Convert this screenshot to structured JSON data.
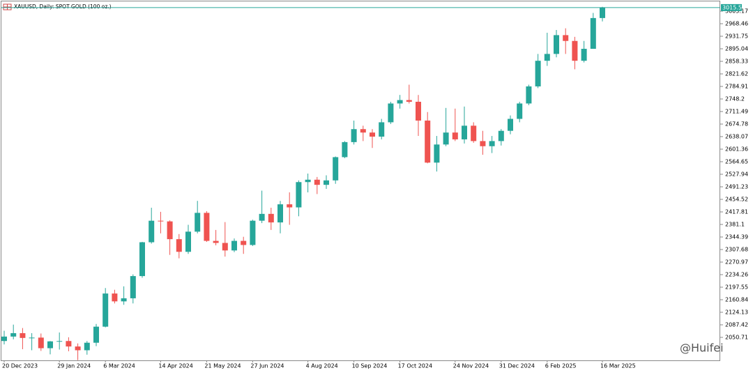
{
  "chart_data": {
    "type": "candlestick",
    "title": "XAUUSD, Daily:  SPOT GOLD (100 oz.)",
    "watermark": "@Huifei",
    "categories": [
      "20 Dec 2023",
      null,
      null,
      null,
      null,
      null,
      "29 Jan 2024",
      null,
      null,
      null,
      null,
      "6 Mar 2024",
      null,
      null,
      null,
      null,
      null,
      "14 Apr 2024",
      null,
      null,
      null,
      null,
      "21 May 2024",
      null,
      null,
      null,
      null,
      "27 Jun 2024",
      null,
      null,
      null,
      null,
      null,
      "4 Aug 2024",
      null,
      null,
      null,
      null,
      "10 Sep 2024",
      null,
      null,
      null,
      null,
      "17 Oct 2024",
      null,
      null,
      null,
      null,
      null,
      "24 Nov 2024",
      null,
      null,
      null,
      null,
      "31 Dec 2024",
      null,
      null,
      null,
      null,
      "6 Feb 2025",
      null,
      null,
      null,
      null,
      null,
      "16 Mar 2025"
    ],
    "open": [
      2040,
      2053,
      2063,
      2049,
      2050,
      2019,
      2039,
      2040,
      2024,
      2013,
      2035,
      2082,
      2179,
      2156,
      2165,
      2230,
      2329,
      2392,
      2390,
      2338,
      2301,
      2360,
      2415,
      2333,
      2327,
      2305,
      2333,
      2321,
      2392,
      2412,
      2387,
      2440,
      2431,
      2505,
      2512,
      2497,
      2510,
      2578,
      2622,
      2660,
      2650,
      2638,
      2680,
      2735,
      2745,
      2740,
      2685,
      2562,
      2615,
      2650,
      2630,
      2670,
      2625,
      2610,
      2625,
      2655,
      2690,
      2735,
      2785,
      2860,
      2880,
      2935,
      2918,
      2860,
      2895,
      2985
    ],
    "high": [
      2070,
      2088,
      2078,
      2063,
      2062,
      2040,
      2065,
      2051,
      2033,
      2040,
      2090,
      2195,
      2190,
      2200,
      2235,
      2330,
      2430,
      2418,
      2393,
      2353,
      2380,
      2450,
      2420,
      2365,
      2388,
      2340,
      2345,
      2395,
      2480,
      2430,
      2450,
      2475,
      2510,
      2530,
      2520,
      2525,
      2580,
      2625,
      2685,
      2670,
      2660,
      2690,
      2740,
      2760,
      2790,
      2760,
      2710,
      2640,
      2722,
      2720,
      2726,
      2680,
      2655,
      2640,
      2660,
      2700,
      2740,
      2790,
      2880,
      2942,
      2950,
      2955,
      2930,
      2918,
      3000,
      3018
    ],
    "low": [
      2030,
      2045,
      2016,
      2013,
      2011,
      2001,
      2015,
      2010,
      1984,
      2000,
      2025,
      2080,
      2150,
      2146,
      2150,
      2225,
      2325,
      2355,
      2292,
      2282,
      2295,
      2355,
      2330,
      2320,
      2287,
      2300,
      2295,
      2318,
      2385,
      2365,
      2355,
      2380,
      2405,
      2475,
      2470,
      2485,
      2500,
      2575,
      2615,
      2625,
      2605,
      2630,
      2675,
      2720,
      2735,
      2640,
      2560,
      2536,
      2610,
      2625,
      2618,
      2620,
      2585,
      2590,
      2612,
      2645,
      2680,
      2730,
      2780,
      2845,
      2870,
      2880,
      2835,
      2855,
      2895,
      2975
    ],
    "close": [
      2053,
      2063,
      2049,
      2050,
      2019,
      2039,
      2040,
      2024,
      2013,
      2035,
      2082,
      2179,
      2156,
      2165,
      2230,
      2329,
      2392,
      2390,
      2338,
      2301,
      2360,
      2415,
      2333,
      2327,
      2305,
      2333,
      2321,
      2392,
      2412,
      2387,
      2440,
      2431,
      2505,
      2512,
      2497,
      2510,
      2578,
      2622,
      2660,
      2650,
      2638,
      2680,
      2735,
      2745,
      2740,
      2685,
      2562,
      2615,
      2650,
      2630,
      2670,
      2625,
      2610,
      2625,
      2655,
      2690,
      2735,
      2785,
      2860,
      2880,
      2935,
      2918,
      2860,
      2895,
      2985,
      3015.57
    ],
    "up_color": "#26a69a",
    "down_color": "#ef5350",
    "last_price": 3015.57,
    "last_price_color": "#26a69a",
    "ylim": [
      1983.4,
      3027.6
    ],
    "yticks": [
      3005.17,
      2968.46,
      2931.75,
      2895.04,
      2858.33,
      2821.62,
      2784.91,
      2748.2,
      2711.49,
      2674.78,
      2638.07,
      2601.36,
      2564.65,
      2527.94,
      2491.23,
      2454.52,
      2417.81,
      2381.1,
      2344.39,
      2307.68,
      2270.97,
      2234.26,
      2197.55,
      2160.84,
      2124.13,
      2087.42,
      2050.71
    ]
  }
}
